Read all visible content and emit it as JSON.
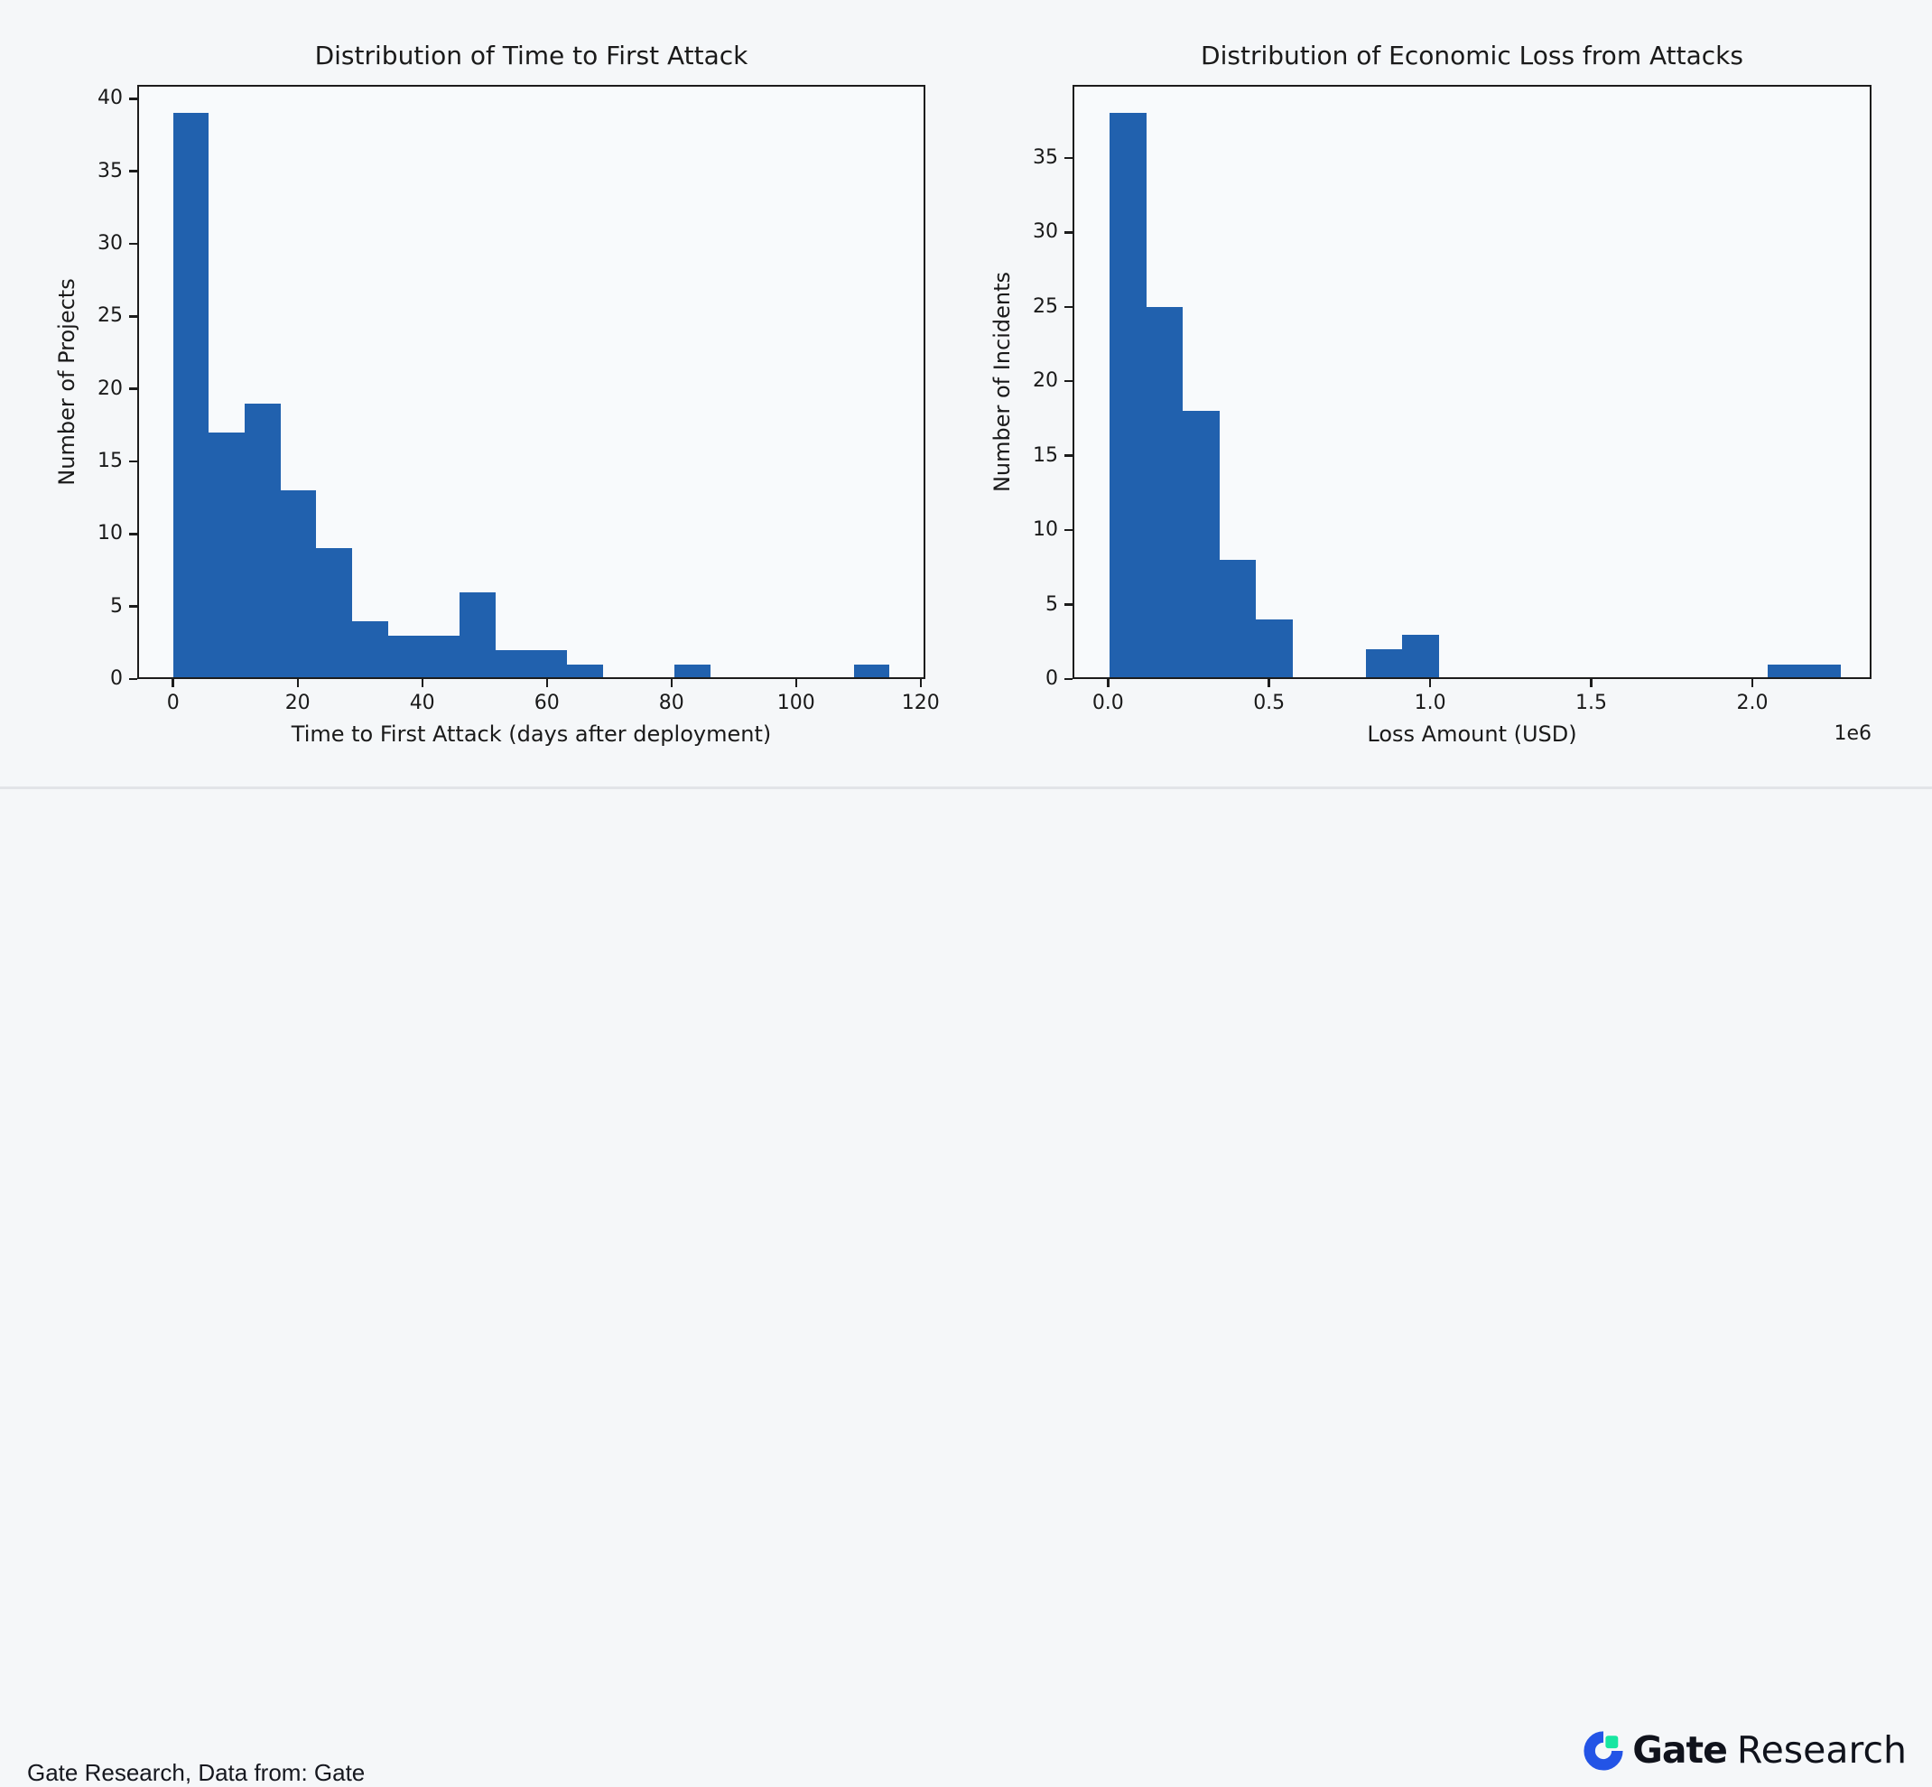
{
  "style": {
    "page_bg": "#f5f7f9",
    "plot_bg": "#f8fafc",
    "bar_color": "#2161ae",
    "axis_color": "#1c1c1c",
    "text_color": "#1a1a1a",
    "divider_color": "#e2e4e8",
    "logo_blue": "#2354e6",
    "logo_green": "#17e6a1",
    "logo_text_color": "#10131c"
  },
  "chart_data": [
    {
      "type": "bar",
      "subtype": "histogram",
      "title": "Distribution of Time to First Attack",
      "xlabel": "Time to First Attack (days after deployment)",
      "ylabel": "Number of Projects",
      "bins": {
        "start": 0,
        "width": 5.75,
        "counts": [
          39,
          17,
          19,
          13,
          9,
          4,
          3,
          3,
          6,
          2,
          2,
          1,
          0,
          0,
          1,
          0,
          0,
          0,
          0,
          1
        ]
      },
      "xlim": [
        -5.75,
        120.75
      ],
      "ylim": [
        0,
        40.95
      ],
      "xticks": {
        "values": [
          0,
          20,
          40,
          60,
          80,
          100,
          120
        ],
        "labels": [
          "0",
          "20",
          "40",
          "60",
          "80",
          "100",
          "120"
        ]
      },
      "yticks": {
        "values": [
          0,
          5,
          10,
          15,
          20,
          25,
          30,
          35,
          40
        ],
        "labels": [
          "0",
          "5",
          "10",
          "15",
          "20",
          "25",
          "30",
          "35",
          "40"
        ]
      },
      "offset_text": "",
      "grid": false,
      "legend": null
    },
    {
      "type": "bar",
      "subtype": "histogram",
      "title": "Distribution of Economic Loss from Attacks",
      "xlabel": "Loss Amount (USD)",
      "ylabel": "Number of Incidents",
      "bins": {
        "start": 0.005,
        "width": 0.1135,
        "counts": [
          38,
          25,
          18,
          8,
          4,
          0,
          0,
          2,
          3,
          0,
          0,
          0,
          0,
          0,
          0,
          0,
          0,
          0,
          1,
          1
        ]
      },
      "xlim": [
        -0.11,
        2.37
      ],
      "ylim": [
        0,
        39.9
      ],
      "xticks": {
        "values": [
          0.0,
          0.5,
          1.0,
          1.5,
          2.0
        ],
        "labels": [
          "0.0",
          "0.5",
          "1.0",
          "1.5",
          "2.0"
        ]
      },
      "yticks": {
        "values": [
          0,
          5,
          10,
          15,
          20,
          25,
          30,
          35
        ],
        "labels": [
          "0",
          "5",
          "10",
          "15",
          "20",
          "25",
          "30",
          "35"
        ]
      },
      "offset_text": "1e6",
      "grid": false,
      "legend": null
    }
  ],
  "footer": {
    "attribution": "Gate Research, Data from: Gate",
    "logo_bold": "Gate",
    "logo_regular": "Research"
  }
}
